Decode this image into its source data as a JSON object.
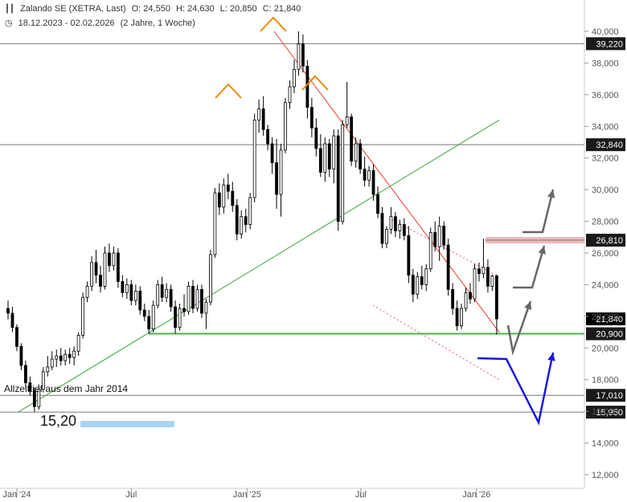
{
  "header": {
    "instrument": "Zalando SE (XETRA, Last)",
    "open": "O: 24,550",
    "high": "H: 24,630",
    "low": "L: 20,850",
    "close": "C: 21,840",
    "range": "18.12.2023 - 02.02.2026",
    "span": "(2 Jahre, 1 Woche)"
  },
  "colors": {
    "candle": "#000000",
    "support_line": "#3aa53a",
    "downtrend_line": "#e0402e",
    "channel_dotted": "#e0606a",
    "hline": "#777777",
    "peak_markers": "#f08a00",
    "arrow_grey": "#666666",
    "arrow_blue": "#1a1ad8",
    "low_bar": "#a8d4ef",
    "resistance_band": "#f2b8b8",
    "support_band": "#b9e3b9"
  },
  "chart_data": {
    "type": "candlestick",
    "title": "Zalando SE (XETRA, Last)",
    "y_axis": {
      "side": "right",
      "ylim": [
        11000,
        41000
      ],
      "scale": "linear"
    },
    "y_tick_labels": [
      "12,000",
      "14,000",
      "16,000",
      "18,000",
      "20,000",
      "22,000",
      "24,000",
      "26,000",
      "28,000",
      "30,000",
      "32,000",
      "34,000",
      "36,000",
      "38,000",
      "40,000"
    ],
    "x_tick_labels": [
      {
        "label": "Jan '24",
        "date": "2024-01-01"
      },
      {
        "label": "Jul",
        "date": "2024-07-01"
      },
      {
        "label": "Jan '25",
        "date": "2025-01-01"
      },
      {
        "label": "Jul",
        "date": "2025-07-01"
      },
      {
        "label": "Jan '26",
        "date": "2026-01-01"
      }
    ],
    "horizontal_lines": [
      {
        "value": 39220,
        "label": "39,220"
      },
      {
        "value": 32840,
        "label": "32,840"
      },
      {
        "value": 26810,
        "label": "26,810"
      },
      {
        "value": 20900,
        "label": "20,900"
      },
      {
        "value": 17010,
        "label": "17,010"
      },
      {
        "value": 15950,
        "label": "15,950"
      }
    ],
    "last_price": {
      "value": 21840,
      "label": "21,840"
    },
    "trendlines": [
      {
        "name": "support",
        "from": {
          "date": "2024-01-03",
          "value": 15950
        },
        "to": {
          "date": "2026-02-06",
          "value": 34400
        }
      },
      {
        "name": "downtrend",
        "from": {
          "date": "2025-02-13",
          "value": 40000
        },
        "to": {
          "date": "2026-02-06",
          "value": 21000
        }
      }
    ],
    "channel_dotted": [
      {
        "from": {
          "date": "2025-08-20",
          "value": 28100
        },
        "to": {
          "date": "2026-02-06",
          "value": 24500
        }
      },
      {
        "from": {
          "date": "2025-07-20",
          "value": 22700
        },
        "to": {
          "date": "2026-02-06",
          "value": 18000
        }
      }
    ],
    "annotations": {
      "all_time_low_text": "Allzeittief aus dem Jahr 2014",
      "low_value_text": "15,20"
    },
    "weekly": [
      {
        "date": "2023-12-18",
        "o": 22500,
        "h": 23000,
        "l": 21800,
        "c": 22200
      },
      {
        "date": "2023-12-25",
        "o": 22200,
        "h": 22600,
        "l": 21000,
        "c": 21300
      },
      {
        "date": "2024-01-01",
        "o": 21300,
        "h": 21500,
        "l": 19800,
        "c": 20100
      },
      {
        "date": "2024-01-08",
        "o": 20100,
        "h": 20300,
        "l": 18600,
        "c": 18900
      },
      {
        "date": "2024-01-15",
        "o": 18900,
        "h": 19200,
        "l": 17500,
        "c": 17800
      },
      {
        "date": "2024-01-22",
        "o": 17800,
        "h": 18200,
        "l": 17000,
        "c": 17300
      },
      {
        "date": "2024-01-29",
        "o": 17300,
        "h": 17500,
        "l": 15950,
        "c": 16300
      },
      {
        "date": "2024-02-05",
        "o": 16300,
        "h": 17700,
        "l": 16100,
        "c": 17400
      },
      {
        "date": "2024-02-12",
        "o": 17400,
        "h": 18800,
        "l": 17200,
        "c": 18500
      },
      {
        "date": "2024-02-19",
        "o": 18500,
        "h": 19500,
        "l": 18200,
        "c": 18800
      },
      {
        "date": "2024-02-26",
        "o": 18800,
        "h": 19800,
        "l": 18600,
        "c": 19300
      },
      {
        "date": "2024-03-04",
        "o": 19300,
        "h": 19900,
        "l": 18800,
        "c": 19500
      },
      {
        "date": "2024-03-11",
        "o": 19500,
        "h": 20000,
        "l": 18900,
        "c": 19200
      },
      {
        "date": "2024-03-18",
        "o": 19200,
        "h": 19900,
        "l": 18900,
        "c": 19600
      },
      {
        "date": "2024-03-25",
        "o": 19600,
        "h": 20000,
        "l": 19000,
        "c": 19400
      },
      {
        "date": "2024-04-01",
        "o": 19400,
        "h": 20100,
        "l": 18900,
        "c": 19800
      },
      {
        "date": "2024-04-08",
        "o": 19800,
        "h": 21000,
        "l": 19500,
        "c": 20800
      },
      {
        "date": "2024-04-15",
        "o": 20800,
        "h": 23500,
        "l": 20600,
        "c": 23200
      },
      {
        "date": "2024-04-22",
        "o": 23200,
        "h": 24200,
        "l": 22900,
        "c": 23900
      },
      {
        "date": "2024-04-29",
        "o": 23900,
        "h": 25800,
        "l": 23600,
        "c": 25400
      },
      {
        "date": "2024-05-06",
        "o": 25400,
        "h": 26200,
        "l": 24100,
        "c": 24600
      },
      {
        "date": "2024-05-13",
        "o": 24600,
        "h": 25200,
        "l": 23500,
        "c": 23900
      },
      {
        "date": "2024-05-20",
        "o": 23900,
        "h": 26400,
        "l": 23700,
        "c": 26000
      },
      {
        "date": "2024-05-27",
        "o": 26000,
        "h": 26600,
        "l": 24800,
        "c": 25200
      },
      {
        "date": "2024-06-03",
        "o": 25200,
        "h": 26400,
        "l": 24900,
        "c": 26000
      },
      {
        "date": "2024-06-10",
        "o": 26000,
        "h": 26300,
        "l": 23800,
        "c": 24200
      },
      {
        "date": "2024-06-17",
        "o": 24200,
        "h": 24600,
        "l": 23200,
        "c": 23500
      },
      {
        "date": "2024-06-24",
        "o": 23500,
        "h": 24400,
        "l": 23100,
        "c": 24000
      },
      {
        "date": "2024-07-01",
        "o": 24000,
        "h": 24300,
        "l": 22700,
        "c": 23000
      },
      {
        "date": "2024-07-08",
        "o": 23000,
        "h": 24000,
        "l": 22700,
        "c": 23600
      },
      {
        "date": "2024-07-15",
        "o": 23600,
        "h": 23900,
        "l": 22100,
        "c": 22400
      },
      {
        "date": "2024-07-22",
        "o": 22400,
        "h": 22800,
        "l": 21700,
        "c": 22000
      },
      {
        "date": "2024-07-29",
        "o": 22000,
        "h": 22400,
        "l": 20900,
        "c": 21200
      },
      {
        "date": "2024-08-05",
        "o": 21200,
        "h": 23000,
        "l": 21000,
        "c": 22700
      },
      {
        "date": "2024-08-12",
        "o": 22700,
        "h": 24300,
        "l": 22500,
        "c": 24000
      },
      {
        "date": "2024-08-19",
        "o": 24000,
        "h": 24500,
        "l": 22900,
        "c": 23200
      },
      {
        "date": "2024-08-26",
        "o": 23200,
        "h": 24100,
        "l": 22900,
        "c": 23700
      },
      {
        "date": "2024-09-02",
        "o": 23700,
        "h": 24000,
        "l": 22300,
        "c": 22600
      },
      {
        "date": "2024-09-09",
        "o": 22600,
        "h": 23000,
        "l": 20900,
        "c": 21300
      },
      {
        "date": "2024-09-16",
        "o": 21300,
        "h": 22800,
        "l": 21100,
        "c": 22500
      },
      {
        "date": "2024-09-23",
        "o": 22500,
        "h": 23400,
        "l": 22000,
        "c": 22300
      },
      {
        "date": "2024-09-30",
        "o": 22300,
        "h": 24200,
        "l": 22100,
        "c": 23900
      },
      {
        "date": "2024-10-07",
        "o": 23900,
        "h": 24300,
        "l": 22200,
        "c": 22500
      },
      {
        "date": "2024-10-14",
        "o": 22500,
        "h": 24000,
        "l": 22300,
        "c": 23700
      },
      {
        "date": "2024-10-21",
        "o": 23700,
        "h": 24000,
        "l": 21900,
        "c": 22200
      },
      {
        "date": "2024-10-28",
        "o": 22200,
        "h": 23100,
        "l": 21200,
        "c": 22900
      },
      {
        "date": "2024-11-04",
        "o": 22900,
        "h": 26200,
        "l": 22700,
        "c": 25900
      },
      {
        "date": "2024-11-11",
        "o": 25900,
        "h": 30100,
        "l": 25700,
        "c": 29800
      },
      {
        "date": "2024-11-18",
        "o": 29800,
        "h": 30400,
        "l": 28400,
        "c": 28900
      },
      {
        "date": "2024-11-25",
        "o": 28900,
        "h": 30700,
        "l": 28500,
        "c": 30300
      },
      {
        "date": "2024-12-02",
        "o": 30300,
        "h": 31000,
        "l": 29400,
        "c": 29900
      },
      {
        "date": "2024-12-09",
        "o": 29900,
        "h": 30500,
        "l": 28600,
        "c": 29000
      },
      {
        "date": "2024-12-16",
        "o": 29000,
        "h": 29400,
        "l": 26800,
        "c": 27200
      },
      {
        "date": "2024-12-23",
        "o": 27200,
        "h": 28700,
        "l": 26900,
        "c": 28300
      },
      {
        "date": "2024-12-30",
        "o": 28300,
        "h": 28800,
        "l": 27300,
        "c": 27800
      },
      {
        "date": "2025-01-06",
        "o": 27800,
        "h": 29800,
        "l": 27500,
        "c": 29500
      },
      {
        "date": "2025-01-13",
        "o": 29500,
        "h": 34800,
        "l": 29200,
        "c": 34400
      },
      {
        "date": "2025-01-20",
        "o": 34400,
        "h": 35700,
        "l": 33600,
        "c": 35100
      },
      {
        "date": "2025-01-27",
        "o": 35100,
        "h": 35900,
        "l": 33400,
        "c": 33800
      },
      {
        "date": "2025-02-03",
        "o": 33800,
        "h": 34100,
        "l": 32500,
        "c": 32900
      },
      {
        "date": "2025-02-10",
        "o": 32900,
        "h": 33300,
        "l": 31000,
        "c": 31700
      },
      {
        "date": "2025-02-17",
        "o": 31700,
        "h": 33200,
        "l": 28800,
        "c": 29700
      },
      {
        "date": "2025-02-24",
        "o": 29700,
        "h": 32900,
        "l": 28300,
        "c": 32500
      },
      {
        "date": "2025-03-03",
        "o": 32500,
        "h": 35800,
        "l": 32300,
        "c": 35500
      },
      {
        "date": "2025-03-10",
        "o": 35500,
        "h": 36900,
        "l": 35100,
        "c": 36500
      },
      {
        "date": "2025-03-17",
        "o": 36500,
        "h": 38200,
        "l": 36100,
        "c": 37600
      },
      {
        "date": "2025-03-24",
        "o": 37600,
        "h": 40000,
        "l": 37200,
        "c": 39200
      },
      {
        "date": "2025-03-31",
        "o": 39200,
        "h": 39800,
        "l": 37400,
        "c": 37800
      },
      {
        "date": "2025-04-07",
        "o": 37800,
        "h": 38200,
        "l": 34500,
        "c": 35200
      },
      {
        "date": "2025-04-14",
        "o": 35200,
        "h": 35800,
        "l": 33300,
        "c": 33900
      },
      {
        "date": "2025-04-21",
        "o": 33900,
        "h": 34500,
        "l": 32100,
        "c": 32600
      },
      {
        "date": "2025-04-28",
        "o": 32600,
        "h": 33500,
        "l": 30800,
        "c": 31100
      },
      {
        "date": "2025-05-05",
        "o": 31100,
        "h": 33300,
        "l": 30500,
        "c": 32900
      },
      {
        "date": "2025-05-12",
        "o": 32900,
        "h": 33200,
        "l": 30800,
        "c": 31300
      },
      {
        "date": "2025-05-19",
        "o": 31300,
        "h": 33800,
        "l": 30400,
        "c": 33400
      },
      {
        "date": "2025-05-26",
        "o": 33400,
        "h": 33800,
        "l": 27400,
        "c": 28000
      },
      {
        "date": "2025-06-02",
        "o": 28000,
        "h": 34400,
        "l": 27800,
        "c": 34100
      },
      {
        "date": "2025-06-09",
        "o": 34100,
        "h": 36800,
        "l": 33900,
        "c": 34600
      },
      {
        "date": "2025-06-16",
        "o": 34600,
        "h": 34800,
        "l": 31500,
        "c": 31800
      },
      {
        "date": "2025-06-23",
        "o": 31800,
        "h": 33300,
        "l": 31400,
        "c": 32900
      },
      {
        "date": "2025-06-30",
        "o": 32900,
        "h": 33200,
        "l": 31000,
        "c": 31300
      },
      {
        "date": "2025-07-07",
        "o": 31300,
        "h": 32100,
        "l": 30200,
        "c": 30600
      },
      {
        "date": "2025-07-14",
        "o": 30600,
        "h": 31500,
        "l": 30200,
        "c": 31200
      },
      {
        "date": "2025-07-21",
        "o": 31200,
        "h": 31600,
        "l": 29300,
        "c": 29700
      },
      {
        "date": "2025-07-28",
        "o": 29700,
        "h": 30200,
        "l": 28200,
        "c": 28500
      },
      {
        "date": "2025-08-04",
        "o": 28500,
        "h": 28900,
        "l": 26300,
        "c": 26600
      },
      {
        "date": "2025-08-11",
        "o": 26600,
        "h": 27700,
        "l": 26300,
        "c": 27500
      },
      {
        "date": "2025-08-18",
        "o": 27500,
        "h": 28900,
        "l": 27200,
        "c": 28300
      },
      {
        "date": "2025-08-25",
        "o": 28300,
        "h": 28600,
        "l": 27000,
        "c": 27400
      },
      {
        "date": "2025-09-01",
        "o": 27400,
        "h": 28100,
        "l": 26900,
        "c": 27800
      },
      {
        "date": "2025-09-08",
        "o": 27800,
        "h": 28200,
        "l": 26800,
        "c": 27100
      },
      {
        "date": "2025-09-15",
        "o": 27100,
        "h": 27700,
        "l": 24100,
        "c": 24600
      },
      {
        "date": "2025-09-22",
        "o": 24600,
        "h": 25000,
        "l": 22900,
        "c": 23400
      },
      {
        "date": "2025-09-29",
        "o": 23400,
        "h": 24800,
        "l": 23100,
        "c": 24500
      },
      {
        "date": "2025-10-06",
        "o": 24500,
        "h": 25200,
        "l": 23700,
        "c": 24000
      },
      {
        "date": "2025-10-13",
        "o": 24000,
        "h": 25300,
        "l": 23600,
        "c": 25000
      },
      {
        "date": "2025-10-20",
        "o": 25000,
        "h": 27600,
        "l": 24800,
        "c": 27300
      },
      {
        "date": "2025-10-27",
        "o": 27300,
        "h": 28000,
        "l": 26100,
        "c": 26400
      },
      {
        "date": "2025-11-03",
        "o": 26400,
        "h": 28300,
        "l": 25500,
        "c": 27700
      },
      {
        "date": "2025-11-10",
        "o": 27700,
        "h": 28000,
        "l": 26200,
        "c": 26500
      },
      {
        "date": "2025-11-17",
        "o": 26500,
        "h": 26900,
        "l": 23300,
        "c": 23700
      },
      {
        "date": "2025-11-24",
        "o": 23700,
        "h": 24100,
        "l": 22100,
        "c": 22500
      },
      {
        "date": "2025-12-01",
        "o": 22500,
        "h": 23000,
        "l": 21100,
        "c": 21400
      },
      {
        "date": "2025-12-08",
        "o": 21400,
        "h": 22800,
        "l": 21200,
        "c": 22500
      },
      {
        "date": "2025-12-15",
        "o": 22500,
        "h": 23800,
        "l": 22300,
        "c": 23500
      },
      {
        "date": "2025-12-22",
        "o": 23500,
        "h": 24100,
        "l": 22800,
        "c": 23100
      },
      {
        "date": "2025-12-29",
        "o": 23100,
        "h": 25300,
        "l": 22900,
        "c": 25000
      },
      {
        "date": "2026-01-05",
        "o": 25000,
        "h": 25400,
        "l": 24200,
        "c": 24700
      },
      {
        "date": "2026-01-12",
        "o": 24700,
        "h": 26900,
        "l": 24400,
        "c": 25100
      },
      {
        "date": "2026-01-19",
        "o": 25100,
        "h": 25600,
        "l": 23500,
        "c": 23900
      },
      {
        "date": "2026-01-26",
        "o": 23900,
        "h": 24630,
        "l": 23600,
        "c": 24550
      },
      {
        "date": "2026-02-02",
        "o": 24550,
        "h": 24630,
        "l": 20850,
        "c": 21840
      }
    ]
  }
}
